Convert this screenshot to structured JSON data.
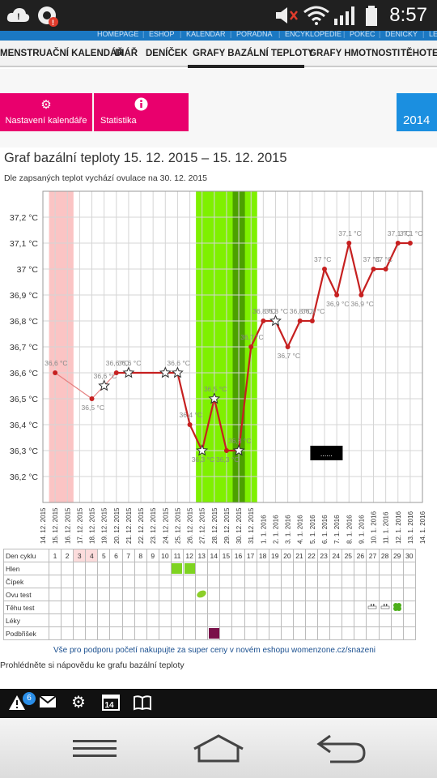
{
  "status": {
    "clock": "8:57",
    "icons": [
      "cloud-alert-icon",
      "camera-alert-icon",
      "mute-icon",
      "wifi-icon",
      "signal-icon",
      "battery-icon"
    ]
  },
  "topnav": [
    "HOMEPAGE",
    "ESHOP",
    "KALENDÁŘ",
    "PORADNA",
    "ENCYKLOPEDIE",
    "POKEC",
    "DENÍČKY",
    "LÉ"
  ],
  "tabs": [
    "MENSTRUAČNÍ KALENDÁŘ",
    "DIÁŘ",
    "DENÍČEK",
    "GRAFY BAZÁLNÍ TEPLOTY",
    "GRAFY HMOTNOSTI",
    "TĚHOTEN"
  ],
  "tiles": {
    "settings": "Nastavení kalendáře",
    "stats": "Statistika",
    "year": "2014"
  },
  "graph": {
    "title": "Graf bazální teploty 15. 12. 2015 – 15. 12. 2015",
    "subtitle": "Dle zapsaných teplot vychází ovulace na 30. 12. 2015"
  },
  "chart_data": {
    "type": "line",
    "y_ticks": [
      "37,2 °C",
      "37,1 °C",
      "37 °C",
      "36,9 °C",
      "36,8 °C",
      "36,7 °C",
      "36,6 °C",
      "36,5 °C",
      "36,4 °C",
      "36,3 °C",
      "36,2 °C"
    ],
    "ylim": [
      36.1,
      37.3
    ],
    "x_labels": [
      "14. 12. 2015",
      "15. 12. 2015",
      "16. 12. 2015",
      "17. 12. 2015",
      "18. 12. 2015",
      "19. 12. 2015",
      "20. 12. 2015",
      "21. 12. 2015",
      "22. 12. 2015",
      "23. 12. 2015",
      "24. 12. 2015",
      "25. 12. 2015",
      "26. 12. 2015",
      "27. 12. 2015",
      "28. 12. 2015",
      "29. 12. 2015",
      "30. 12. 2015",
      "31. 12. 2015",
      "1. 1. 2016",
      "2. 1. 2016",
      "3. 1. 2016",
      "4. 1. 2016",
      "5. 1. 2016",
      "6. 1. 2016",
      "7. 1. 2016",
      "8. 1. 2016",
      "9. 1. 2016",
      "10. 1. 2016",
      "11. 1. 2016",
      "12. 1. 2016",
      "13. 1. 2016",
      "14. 1. 2016"
    ],
    "points": [
      {
        "i": 1,
        "y": 36.6,
        "label": "36,6 °C",
        "star": false
      },
      {
        "i": 4,
        "y": 36.5,
        "label": "36,5 °C",
        "star": false
      },
      {
        "i": 5,
        "y": 36.55,
        "label": "36,6 °C",
        "star": true
      },
      {
        "i": 6,
        "y": 36.6,
        "label": "36,6 °C",
        "star": false
      },
      {
        "i": 7,
        "y": 36.6,
        "label": "36,6 °C",
        "star": true
      },
      {
        "i": 10,
        "y": 36.6,
        "label": "",
        "star": true
      },
      {
        "i": 11,
        "y": 36.6,
        "label": "36,6 °C",
        "star": true
      },
      {
        "i": 12,
        "y": 36.4,
        "label": "36,4 °C",
        "star": false
      },
      {
        "i": 13,
        "y": 36.3,
        "label": "36,3 °C",
        "star": true
      },
      {
        "i": 14,
        "y": 36.5,
        "label": "36,5 °C",
        "star": true
      },
      {
        "i": 15,
        "y": 36.3,
        "label": "36,3 °C",
        "star": false
      },
      {
        "i": 16,
        "y": 36.3,
        "label": "36,3 °C",
        "star": true
      },
      {
        "i": 17,
        "y": 36.7,
        "label": "36,7 °C",
        "star": false
      },
      {
        "i": 18,
        "y": 36.8,
        "label": "36,8 °C",
        "star": false
      },
      {
        "i": 19,
        "y": 36.8,
        "label": "36,8 °C",
        "star": true
      },
      {
        "i": 20,
        "y": 36.7,
        "label": "36,7 °C",
        "star": false
      },
      {
        "i": 21,
        "y": 36.8,
        "label": "36,8 °C",
        "star": false
      },
      {
        "i": 22,
        "y": 36.8,
        "label": "36,8 °C",
        "star": false
      },
      {
        "i": 23,
        "y": 37.0,
        "label": "37 °C",
        "star": false
      },
      {
        "i": 24,
        "y": 36.9,
        "label": "36,9 °C",
        "star": false
      },
      {
        "i": 25,
        "y": 37.1,
        "label": "37,1 °C",
        "star": false
      },
      {
        "i": 26,
        "y": 36.9,
        "label": "36,9 °C",
        "star": false
      },
      {
        "i": 27,
        "y": 37.0,
        "label": "37 °C",
        "star": false
      },
      {
        "i": 28,
        "y": 37.0,
        "label": "37 °C",
        "star": false
      },
      {
        "i": 29,
        "y": 37.1,
        "label": "37,1 °C",
        "star": false
      },
      {
        "i": 30,
        "y": 37.1,
        "label": "37,1 °C",
        "star": false
      }
    ],
    "bands": [
      {
        "from": 0.5,
        "to": 2.5,
        "color": "#fbc4c4"
      },
      {
        "from": 12.5,
        "to": 17.5,
        "color": "#7ff000"
      },
      {
        "from": 15.5,
        "to": 16.5,
        "color": "#4ca000"
      }
    ],
    "line_color": "#c62020",
    "tooltip": "......"
  },
  "table": {
    "rows": [
      "Den cyklu",
      "Hlen",
      "Čípek",
      "Ovu test",
      "Těhu test",
      "Léky",
      "Podbřišek"
    ],
    "days": [
      "1",
      "2",
      "3",
      "4",
      "5",
      "6",
      "7",
      "8",
      "9",
      "10",
      "11",
      "12",
      "13",
      "14",
      "15",
      "16",
      "17",
      "18",
      "19",
      "20",
      "21",
      "22",
      "23",
      "24",
      "25",
      "26",
      "27",
      "28",
      "29",
      "30"
    ]
  },
  "footer": {
    "promo": "Vše pro podporu početí nakupujte za super ceny v novém eshopu womenzone.cz/snazeni",
    "help": "Prohlédněte si nápovědu ke grafu bazální teploty"
  },
  "bottombar": {
    "badge": "6",
    "calendar_day": "14"
  }
}
